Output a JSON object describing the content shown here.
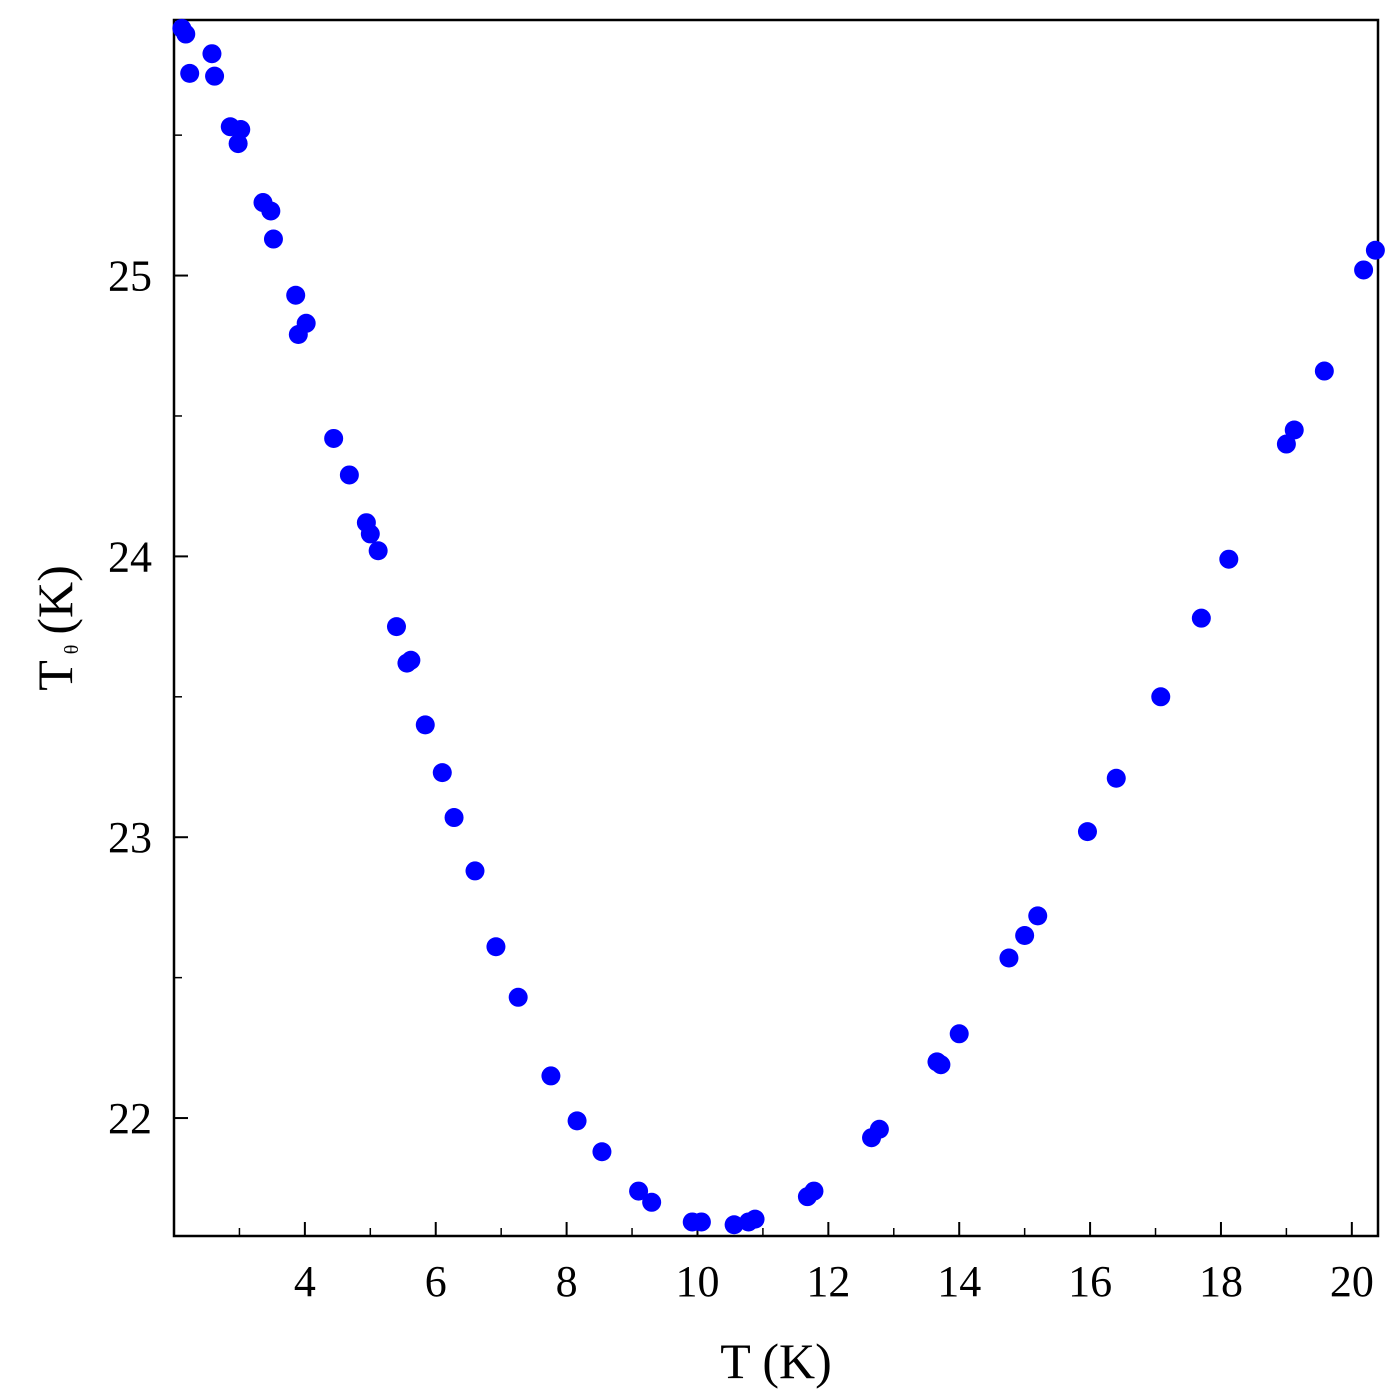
{
  "chart_data": {
    "type": "scatter",
    "title": "",
    "xlabel": "T (K)",
    "ylabel_main": "T",
    "ylabel_subscript": "θ",
    "ylabel_units": "(K)",
    "xlim": [
      2.0,
      20.4
    ],
    "ylim": [
      21.58,
      25.91
    ],
    "x_ticks": [
      4,
      6,
      8,
      10,
      12,
      14,
      16,
      18,
      20
    ],
    "x_tick_labels": [
      "4",
      "6",
      "8",
      "10",
      "12",
      "14",
      "16",
      "18",
      "20"
    ],
    "y_ticks": [
      22,
      23,
      24,
      25
    ],
    "y_tick_labels": [
      "22",
      "23",
      "24",
      "25"
    ],
    "grid": false,
    "marker_color": "#0000ff",
    "series": [
      {
        "x": [
          2.12,
          2.18,
          2.24,
          2.58,
          2.62,
          2.86,
          2.98,
          3.02,
          3.36,
          3.48,
          3.52,
          3.86,
          3.9,
          4.02,
          4.44,
          4.68,
          4.94,
          5.0,
          5.12,
          5.4,
          5.56,
          5.62,
          5.84,
          6.1,
          6.28,
          6.6,
          6.92,
          7.26,
          7.76,
          8.16,
          8.54,
          9.1,
          9.3,
          9.92,
          10.06,
          10.56,
          10.78,
          10.88,
          11.68,
          11.78,
          12.66,
          12.78,
          13.66,
          13.72,
          14.0,
          14.76,
          15.0,
          15.2,
          15.96,
          16.4,
          17.08,
          17.7,
          18.12,
          19.0,
          19.12,
          19.58,
          20.18,
          20.36
        ],
        "y": [
          25.88,
          25.86,
          25.72,
          25.79,
          25.71,
          25.53,
          25.47,
          25.52,
          25.26,
          25.23,
          25.13,
          24.93,
          24.79,
          24.83,
          24.42,
          24.29,
          24.12,
          24.08,
          24.02,
          23.75,
          23.62,
          23.63,
          23.4,
          23.23,
          23.07,
          22.88,
          22.61,
          22.43,
          22.15,
          21.99,
          21.88,
          21.74,
          21.7,
          21.63,
          21.63,
          21.62,
          21.63,
          21.64,
          21.72,
          21.74,
          21.93,
          21.96,
          22.2,
          22.19,
          22.3,
          22.57,
          22.65,
          22.72,
          23.02,
          23.21,
          23.5,
          23.78,
          23.99,
          24.4,
          24.45,
          24.66,
          25.02,
          25.09
        ]
      }
    ]
  }
}
